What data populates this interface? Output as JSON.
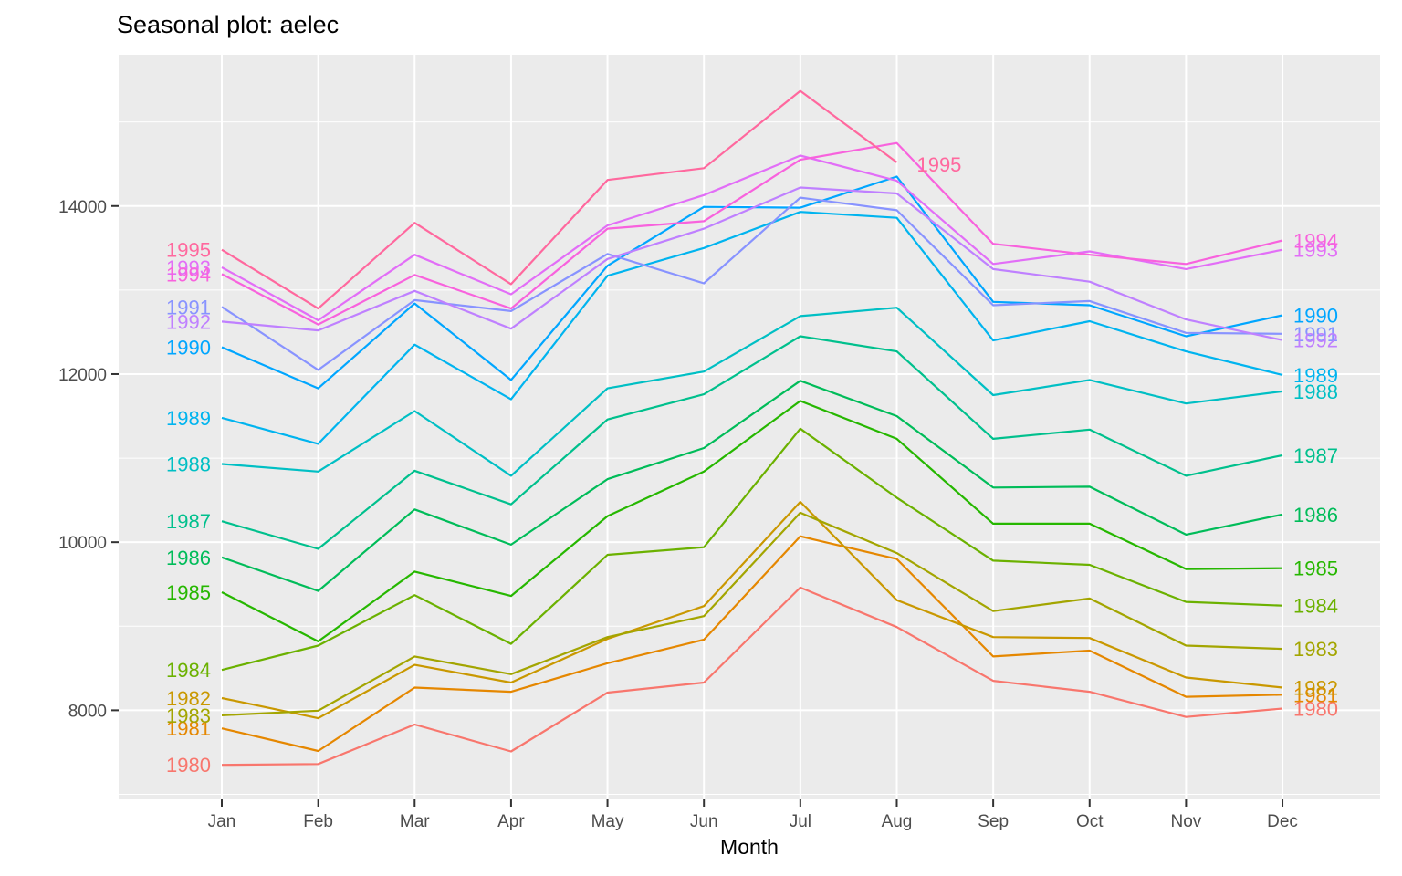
{
  "chart_data": {
    "type": "line",
    "title": "Seasonal plot: aelec",
    "xlabel": "Month",
    "ylabel": "",
    "categories": [
      "Jan",
      "Feb",
      "Mar",
      "Apr",
      "May",
      "Jun",
      "Jul",
      "Aug",
      "Sep",
      "Oct",
      "Nov",
      "Dec"
    ],
    "y_ticks": [
      8000,
      10000,
      12000,
      14000
    ],
    "y_minor_ticks": [
      7000,
      9000,
      11000,
      13000,
      15000
    ],
    "ylim": [
      6940,
      15800
    ],
    "grid": true,
    "legend_position": "none",
    "panel_bg": "#EBEBEB",
    "grid_color": "#FFFFFF",
    "axis_text_color": "#4D4D4D",
    "tick_color": "#333333",
    "series": [
      {
        "name": "1980",
        "color": "#F8766D",
        "values": [
          7350,
          7360,
          7830,
          7510,
          8210,
          8330,
          9460,
          8990,
          8350,
          8220,
          7920,
          8020
        ]
      },
      {
        "name": "1981",
        "color": "#E58700",
        "values": [
          7785,
          7515,
          8270,
          8220,
          8560,
          8840,
          10070,
          9800,
          8640,
          8710,
          8160,
          8185
        ]
      },
      {
        "name": "1982",
        "color": "#C99800",
        "values": [
          8145,
          7905,
          8540,
          8330,
          8850,
          9240,
          10480,
          9310,
          8870,
          8860,
          8390,
          8270
        ]
      },
      {
        "name": "1983",
        "color": "#A3A500",
        "values": [
          7940,
          7995,
          8640,
          8430,
          8870,
          9120,
          10350,
          9870,
          9180,
          9330,
          8770,
          8730
        ]
      },
      {
        "name": "1984",
        "color": "#6BB100",
        "values": [
          8480,
          8770,
          9370,
          8790,
          9850,
          9940,
          11350,
          10530,
          9780,
          9730,
          9290,
          9245
        ]
      },
      {
        "name": "1985",
        "color": "#26B700",
        "values": [
          9405,
          8820,
          9650,
          9360,
          10310,
          10840,
          11680,
          11230,
          10220,
          10220,
          9680,
          9690
        ]
      },
      {
        "name": "1986",
        "color": "#00BC59",
        "values": [
          9820,
          9420,
          10390,
          9970,
          10750,
          11120,
          11920,
          11500,
          10650,
          10660,
          10090,
          10330
        ]
      },
      {
        "name": "1987",
        "color": "#00C08D",
        "values": [
          10250,
          9920,
          10850,
          10450,
          11460,
          11760,
          12450,
          12270,
          11230,
          11340,
          10790,
          11035
        ]
      },
      {
        "name": "1988",
        "color": "#00BFC4",
        "values": [
          10930,
          10840,
          11560,
          10790,
          11830,
          12030,
          12690,
          12790,
          11750,
          11930,
          11650,
          11795
        ]
      },
      {
        "name": "1989",
        "color": "#00B4EF",
        "values": [
          11480,
          11170,
          12350,
          11700,
          13170,
          13500,
          13930,
          13860,
          12400,
          12630,
          12270,
          11990
        ]
      },
      {
        "name": "1990",
        "color": "#00A6FF",
        "values": [
          12320,
          11830,
          12840,
          11930,
          13290,
          13990,
          13980,
          14350,
          12860,
          12820,
          12450,
          12700
        ]
      },
      {
        "name": "1991",
        "color": "#8893FF",
        "values": [
          12800,
          12050,
          12880,
          12750,
          13430,
          13080,
          14100,
          13950,
          12820,
          12870,
          12490,
          12480
        ]
      },
      {
        "name": "1992",
        "color": "#BF80FF",
        "values": [
          12625,
          12520,
          12990,
          12540,
          13370,
          13730,
          14220,
          14150,
          13250,
          13100,
          12650,
          12405
        ]
      },
      {
        "name": "1993",
        "color": "#E26EF7",
        "values": [
          13270,
          12640,
          13420,
          12950,
          13770,
          14130,
          14600,
          14300,
          13310,
          13460,
          13250,
          13480
        ]
      },
      {
        "name": "1994",
        "color": "#F862DD",
        "values": [
          13190,
          12590,
          13180,
          12780,
          13730,
          13820,
          14550,
          14750,
          13550,
          13420,
          13310,
          13590
        ]
      },
      {
        "name": "1995",
        "color": "#FF689E",
        "values": [
          13480,
          12780,
          13800,
          13070,
          14310,
          14450,
          15370,
          14520,
          null,
          null,
          null,
          null
        ]
      }
    ],
    "year_labels_left": true,
    "year_labels_right": true
  }
}
